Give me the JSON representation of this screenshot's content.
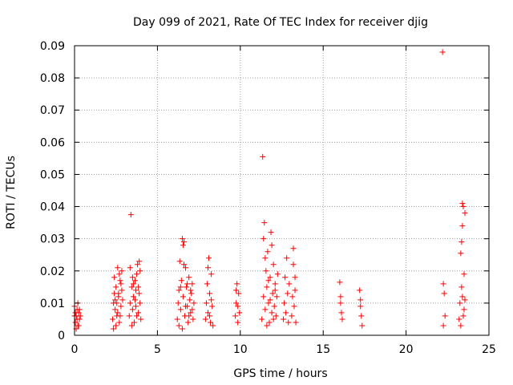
{
  "chart_data": {
    "type": "scatter",
    "title": "Day 099 of 2021, Rate Of TEC Index for receiver djig",
    "xlabel": "GPS time / hours",
    "ylabel": "ROTI / TECUs",
    "xlim": [
      0,
      25
    ],
    "ylim": [
      0,
      0.09
    ],
    "grid": true,
    "xticks": [
      0,
      5,
      10,
      15,
      20,
      25
    ],
    "xtick_labels": [
      "0",
      "5",
      "10",
      "15",
      "20",
      "25"
    ],
    "yticks": [
      0,
      0.01,
      0.02,
      0.03,
      0.04,
      0.05,
      0.06,
      0.07,
      0.08,
      0.09
    ],
    "ytick_labels": [
      "0",
      "0.01",
      "0.02",
      "0.03",
      "0.04",
      "0.05",
      "0.06",
      "0.07",
      "0.08",
      "0.09"
    ],
    "marker": "+",
    "color": "#ff0000",
    "series": [
      {
        "name": "ROTI",
        "points": [
          [
            0.0,
            0.009
          ],
          [
            0.05,
            0.004
          ],
          [
            0.1,
            0.006
          ],
          [
            0.15,
            0.008
          ],
          [
            0.2,
            0.003
          ],
          [
            0.25,
            0.007
          ],
          [
            0.3,
            0.005
          ],
          [
            0.1,
            0.002
          ],
          [
            0.2,
            0.01
          ],
          [
            0.05,
            0.007
          ],
          [
            0.15,
            0.005
          ],
          [
            0.3,
            0.008
          ],
          [
            0.25,
            0.003
          ],
          [
            0.0,
            0.006
          ],
          [
            0.35,
            0.006
          ],
          [
            2.3,
            0.005
          ],
          [
            2.35,
            0.01
          ],
          [
            2.4,
            0.013
          ],
          [
            2.45,
            0.008
          ],
          [
            2.5,
            0.015
          ],
          [
            2.55,
            0.006
          ],
          [
            2.6,
            0.021
          ],
          [
            2.65,
            0.012
          ],
          [
            2.7,
            0.004
          ],
          [
            2.75,
            0.017
          ],
          [
            2.8,
            0.009
          ],
          [
            2.85,
            0.014
          ],
          [
            2.9,
            0.011
          ],
          [
            2.4,
            0.018
          ],
          [
            2.5,
            0.003
          ],
          [
            2.6,
            0.007
          ],
          [
            2.7,
            0.019
          ],
          [
            2.8,
            0.016
          ],
          [
            2.35,
            0.002
          ],
          [
            2.55,
            0.01
          ],
          [
            2.65,
            0.013
          ],
          [
            2.75,
            0.006
          ],
          [
            2.85,
            0.02
          ],
          [
            2.45,
            0.011
          ],
          [
            3.3,
            0.006
          ],
          [
            3.35,
            0.01
          ],
          [
            3.4,
            0.0375
          ],
          [
            3.45,
            0.015
          ],
          [
            3.5,
            0.008
          ],
          [
            3.55,
            0.012
          ],
          [
            3.6,
            0.004
          ],
          [
            3.65,
            0.017
          ],
          [
            3.7,
            0.009
          ],
          [
            3.75,
            0.019
          ],
          [
            3.8,
            0.022
          ],
          [
            3.85,
            0.007
          ],
          [
            3.9,
            0.013
          ],
          [
            3.95,
            0.02
          ],
          [
            4.0,
            0.005
          ],
          [
            3.35,
            0.021
          ],
          [
            3.45,
            0.003
          ],
          [
            3.55,
            0.016
          ],
          [
            3.65,
            0.011
          ],
          [
            3.75,
            0.006
          ],
          [
            3.85,
            0.015
          ],
          [
            3.95,
            0.01
          ],
          [
            3.5,
            0.018
          ],
          [
            3.7,
            0.014
          ],
          [
            3.9,
            0.023
          ],
          [
            6.2,
            0.005
          ],
          [
            6.25,
            0.01
          ],
          [
            6.3,
            0.014
          ],
          [
            6.35,
            0.023
          ],
          [
            6.4,
            0.008
          ],
          [
            6.45,
            0.017
          ],
          [
            6.5,
            0.03
          ],
          [
            6.55,
            0.012
          ],
          [
            6.6,
            0.029
          ],
          [
            6.65,
            0.006
          ],
          [
            6.7,
            0.021
          ],
          [
            6.75,
            0.015
          ],
          [
            6.8,
            0.009
          ],
          [
            6.85,
            0.004
          ],
          [
            6.9,
            0.018
          ],
          [
            6.95,
            0.011
          ],
          [
            7.0,
            0.007
          ],
          [
            7.05,
            0.013
          ],
          [
            7.1,
            0.016
          ],
          [
            7.15,
            0.005
          ],
          [
            7.2,
            0.01
          ],
          [
            6.3,
            0.003
          ],
          [
            6.4,
            0.015
          ],
          [
            6.5,
            0.002
          ],
          [
            6.6,
            0.022
          ],
          [
            6.7,
            0.009
          ],
          [
            6.8,
            0.016
          ],
          [
            6.9,
            0.006
          ],
          [
            7.0,
            0.014
          ],
          [
            7.1,
            0.008
          ],
          [
            6.55,
            0.028
          ],
          [
            7.9,
            0.005
          ],
          [
            7.95,
            0.01
          ],
          [
            8.0,
            0.016
          ],
          [
            8.05,
            0.007
          ],
          [
            8.1,
            0.024
          ],
          [
            8.15,
            0.013
          ],
          [
            8.2,
            0.004
          ],
          [
            8.25,
            0.019
          ],
          [
            8.3,
            0.009
          ],
          [
            8.35,
            0.003
          ],
          [
            8.05,
            0.021
          ],
          [
            8.15,
            0.006
          ],
          [
            8.25,
            0.011
          ],
          [
            9.7,
            0.006
          ],
          [
            9.75,
            0.01
          ],
          [
            9.8,
            0.016
          ],
          [
            9.85,
            0.004
          ],
          [
            9.9,
            0.013
          ],
          [
            9.95,
            0.007
          ],
          [
            9.75,
            0.014
          ],
          [
            9.85,
            0.009
          ],
          [
            11.3,
            0.005
          ],
          [
            11.35,
            0.0555
          ],
          [
            11.4,
            0.012
          ],
          [
            11.45,
            0.035
          ],
          [
            11.5,
            0.008
          ],
          [
            11.55,
            0.02
          ],
          [
            11.6,
            0.015
          ],
          [
            11.65,
            0.026
          ],
          [
            11.7,
            0.01
          ],
          [
            11.75,
            0.004
          ],
          [
            11.8,
            0.018
          ],
          [
            11.85,
            0.032
          ],
          [
            11.9,
            0.007
          ],
          [
            11.95,
            0.013
          ],
          [
            12.0,
            0.022
          ],
          [
            12.05,
            0.009
          ],
          [
            12.1,
            0.016
          ],
          [
            12.15,
            0.006
          ],
          [
            12.2,
            0.012
          ],
          [
            12.25,
            0.019
          ],
          [
            11.4,
            0.03
          ],
          [
            11.5,
            0.024
          ],
          [
            11.6,
            0.003
          ],
          [
            11.7,
            0.017
          ],
          [
            11.8,
            0.011
          ],
          [
            11.9,
            0.028
          ],
          [
            12.0,
            0.005
          ],
          [
            12.1,
            0.014
          ],
          [
            12.6,
            0.005
          ],
          [
            12.65,
            0.01
          ],
          [
            12.7,
            0.018
          ],
          [
            12.75,
            0.007
          ],
          [
            12.8,
            0.024
          ],
          [
            12.85,
            0.013
          ],
          [
            12.9,
            0.004
          ],
          [
            12.95,
            0.016
          ],
          [
            13.1,
            0.006
          ],
          [
            13.15,
            0.012
          ],
          [
            13.2,
            0.027
          ],
          [
            13.25,
            0.009
          ],
          [
            13.3,
            0.018
          ],
          [
            13.35,
            0.004
          ],
          [
            13.2,
            0.022
          ],
          [
            13.3,
            0.014
          ],
          [
            16.0,
            0.0165
          ],
          [
            16.05,
            0.01
          ],
          [
            16.1,
            0.007
          ],
          [
            16.15,
            0.005
          ],
          [
            16.05,
            0.012
          ],
          [
            17.2,
            0.014
          ],
          [
            17.25,
            0.009
          ],
          [
            17.3,
            0.006
          ],
          [
            17.35,
            0.003
          ],
          [
            17.25,
            0.011
          ],
          [
            22.2,
            0.088
          ],
          [
            22.25,
            0.016
          ],
          [
            22.3,
            0.013
          ],
          [
            22.35,
            0.006
          ],
          [
            22.25,
            0.003
          ],
          [
            23.2,
            0.005
          ],
          [
            23.25,
            0.01
          ],
          [
            23.3,
            0.0255
          ],
          [
            23.35,
            0.015
          ],
          [
            23.4,
            0.034
          ],
          [
            23.45,
            0.04
          ],
          [
            23.5,
            0.008
          ],
          [
            23.55,
            0.038
          ],
          [
            23.3,
            0.003
          ],
          [
            23.4,
            0.012
          ],
          [
            23.5,
            0.019
          ],
          [
            23.35,
            0.029
          ],
          [
            23.45,
            0.006
          ],
          [
            23.55,
            0.011
          ],
          [
            23.4,
            0.041
          ]
        ]
      }
    ]
  }
}
